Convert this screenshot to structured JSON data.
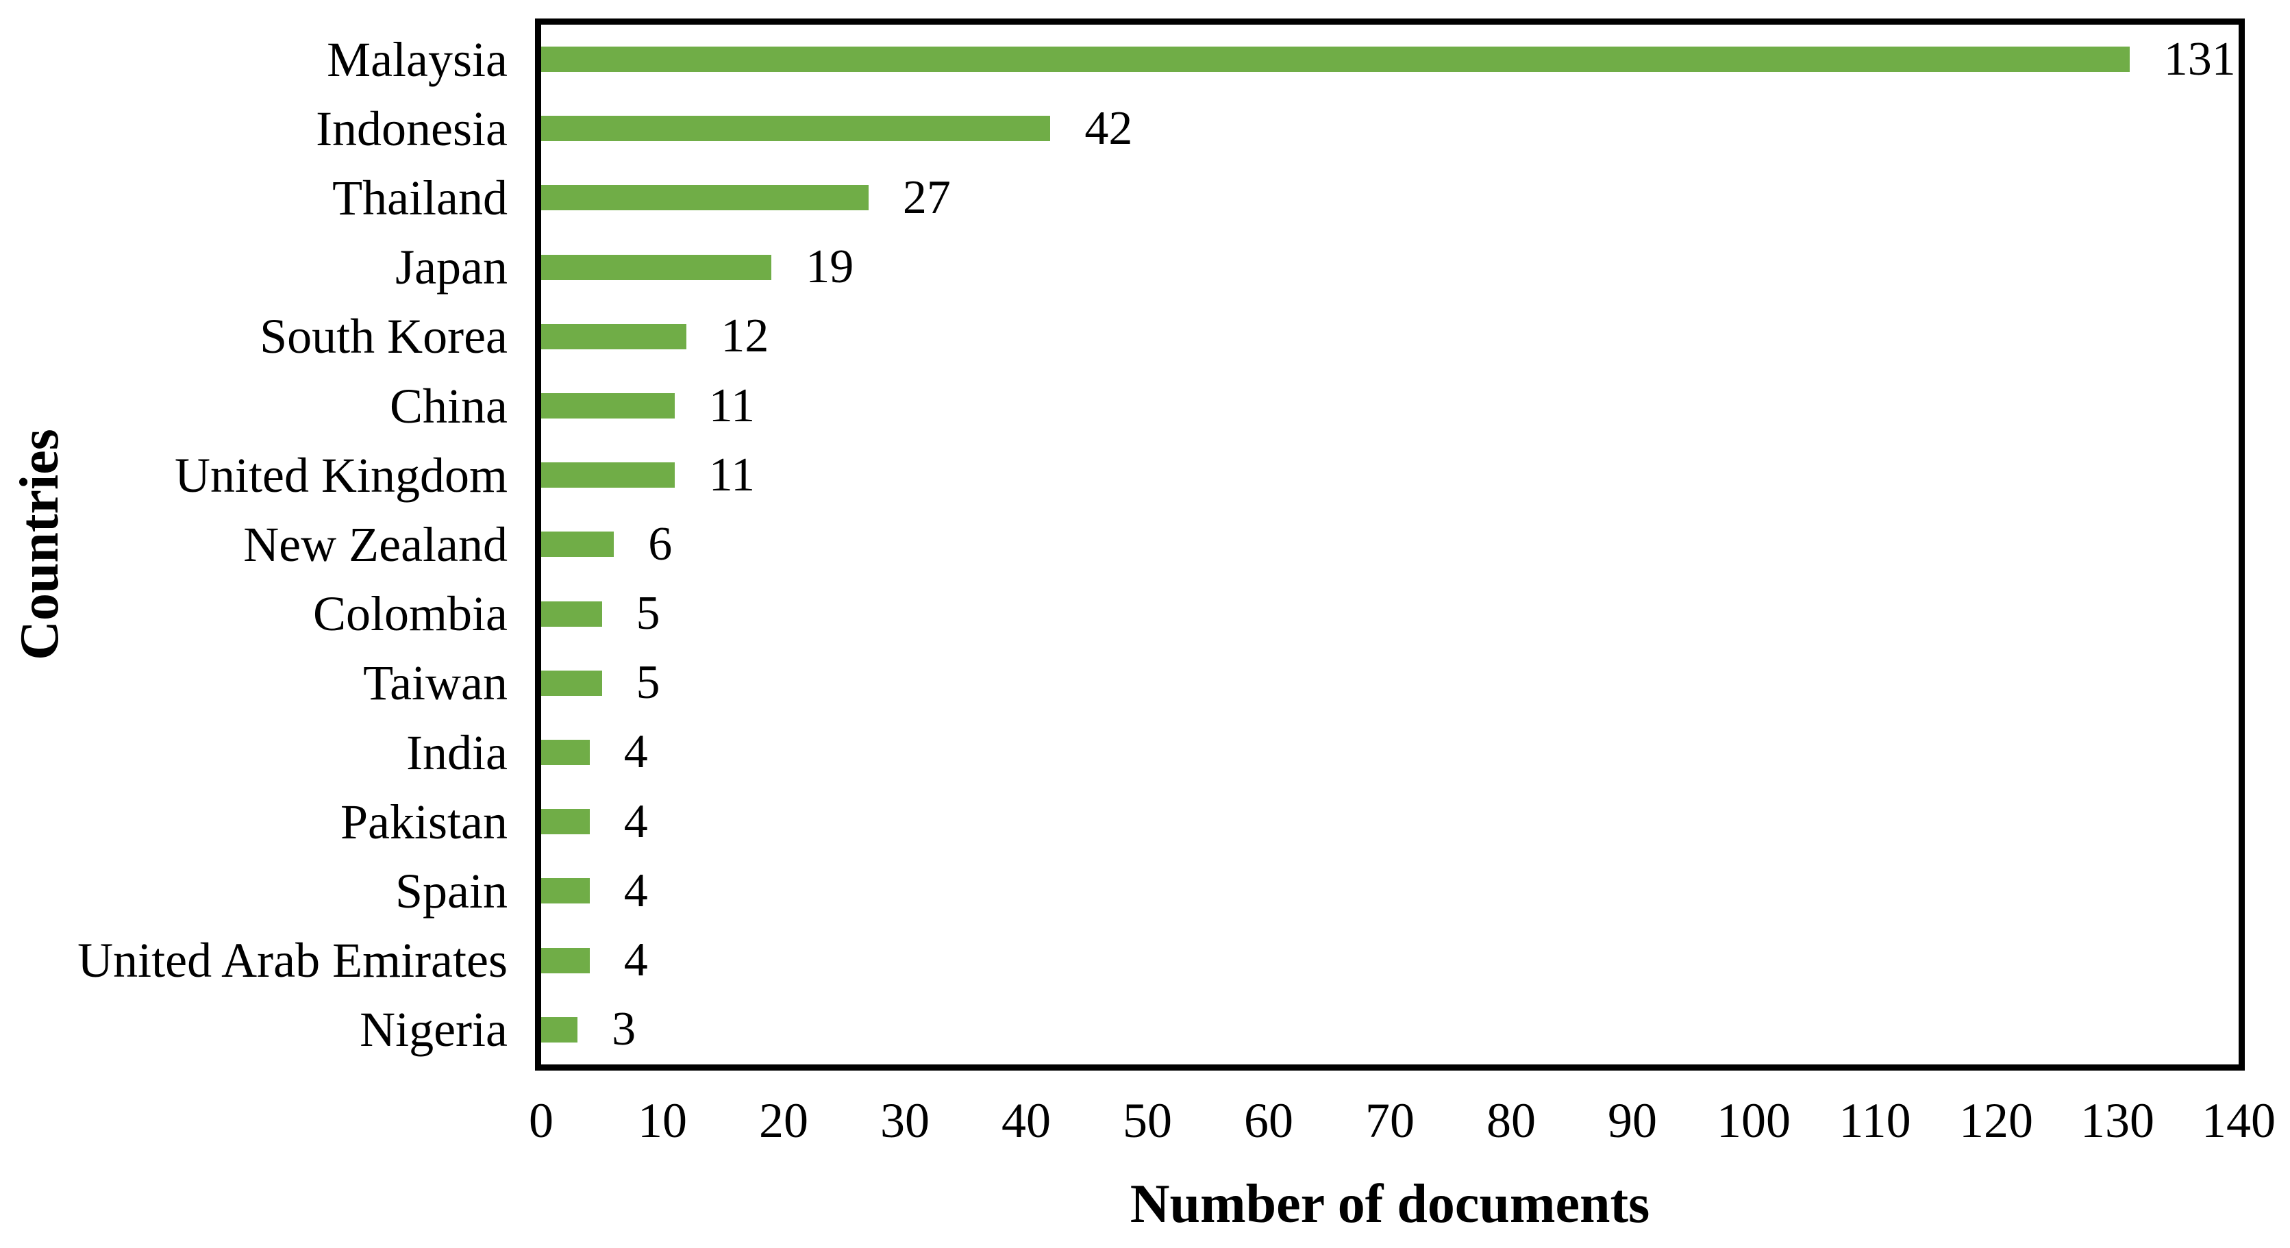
{
  "figure": {
    "background": "#ffffff",
    "text_color": "#000000"
  },
  "chart_data": {
    "type": "bar",
    "orientation": "horizontal",
    "title": "",
    "xlabel": "Number of documents",
    "ylabel": "Countries",
    "categories": [
      "Malaysia",
      "Indonesia",
      "Thailand",
      "Japan",
      "South Korea",
      "China",
      "United Kingdom",
      "New Zealand",
      "Colombia",
      "Taiwan",
      "India",
      "Pakistan",
      "Spain",
      "United Arab Emirates",
      "Nigeria"
    ],
    "values": [
      131,
      42,
      27,
      19,
      12,
      11,
      11,
      6,
      5,
      5,
      4,
      4,
      4,
      4,
      3
    ],
    "data_labels": [
      "131",
      "42",
      "27",
      "19",
      "12",
      "11",
      "11",
      "6",
      "5",
      "5",
      "4",
      "4",
      "4",
      "4",
      "3"
    ],
    "xlim": [
      0,
      140
    ],
    "xticks": [
      0,
      10,
      20,
      30,
      40,
      50,
      60,
      70,
      80,
      90,
      100,
      110,
      120,
      130,
      140
    ],
    "bar_color": "#70AD47",
    "axis_color": "#000000",
    "grid": false,
    "legend": false,
    "data_labels_shown": true
  }
}
